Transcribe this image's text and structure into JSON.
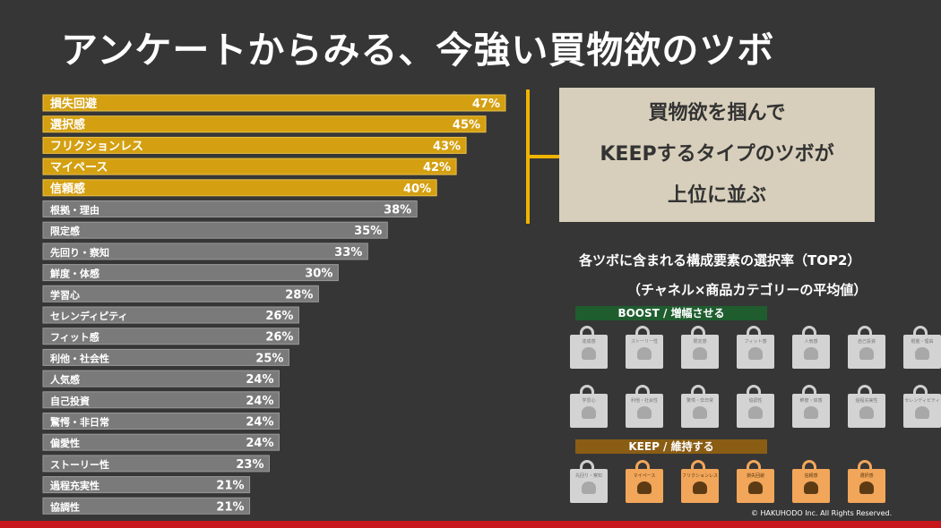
{
  "title": "アンケートからみる、今強い買物欲のツボ",
  "callout": {
    "line1": "買物欲を掴んで",
    "line2": "KEEPするタイプのツボが",
    "line3": "上位に並ぶ"
  },
  "subtitle_line1": "各ツボに含まれる構成要素の選択率（TOP2）",
  "subtitle_line2": "（チャネル×商品カテゴリーの平均値）",
  "boost_label": "BOOST / 増幅させる",
  "keep_label": "KEEP / 維持する",
  "boost_icons_row1": [
    {
      "icon": "trophy-person-icon",
      "label": "達成感"
    },
    {
      "icon": "story-people-icon",
      "label": "ストーリー性"
    },
    {
      "icon": "running-person-icon",
      "label": "限定感"
    },
    {
      "icon": "fit-person-icon",
      "label": "フィット感"
    },
    {
      "icon": "crowd-icon",
      "label": "人気感"
    },
    {
      "icon": "investment-graph-icon",
      "label": "自己投資"
    },
    {
      "icon": "person-laptop-icon",
      "label": "根拠・理由"
    }
  ],
  "boost_icons_row2": [
    {
      "icon": "study-person-icon",
      "label": "学習心"
    },
    {
      "icon": "globe-hands-icon",
      "label": "利他・社会性"
    },
    {
      "icon": "surprise-person-icon",
      "label": "驚愕・非日常"
    },
    {
      "icon": "group-people-icon",
      "label": "協調性"
    },
    {
      "icon": "standing-person-icon",
      "label": "鮮度・体感"
    },
    {
      "icon": "walking-forward-icon",
      "label": "過程充実性"
    },
    {
      "icon": "serendipity-icon",
      "label": "セレンディピティ"
    }
  ],
  "keep_icons": [
    {
      "icon": "shopping-person-icon",
      "label": "先回り・察知",
      "style": "light"
    },
    {
      "icon": "relaxed-person-icon",
      "label": "マイペース",
      "style": "orange"
    },
    {
      "icon": "frictionless-person-icon",
      "label": "フリクションレス",
      "style": "orange"
    },
    {
      "icon": "slipping-person-icon",
      "label": "損失回避",
      "style": "orange"
    },
    {
      "icon": "trusted-person-icon",
      "label": "信頼感",
      "style": "orange"
    },
    {
      "icon": "selection-person-icon",
      "label": "選択感",
      "style": "orange"
    }
  ],
  "copyright": "© HAKUHODO Inc. All Rights Reserved.",
  "colors": {
    "highlight_bar": "#d4a011",
    "normal_bar": "#7a7a7a",
    "background": "#363636",
    "callout_bg": "#d7cfbb",
    "boost_band": "#1f5d2f",
    "keep_band": "#8a5d14",
    "keep_icon": "#f2a65a",
    "footer_line": "#c8161d"
  },
  "chart_data": {
    "type": "bar",
    "orientation": "horizontal",
    "categories": [
      "損失回避",
      "選択感",
      "フリクションレス",
      "マイペース",
      "信頼感",
      "根拠・理由",
      "限定感",
      "先回り・察知",
      "鮮度・体感",
      "学習心",
      "セレンディピティ",
      "フィット感",
      "利他・社会性",
      "人気感",
      "自己投資",
      "驚愕・非日常",
      "偏愛性",
      "ストーリー性",
      "過程充実性",
      "協調性"
    ],
    "values": [
      47,
      45,
      43,
      42,
      40,
      38,
      35,
      33,
      30,
      28,
      26,
      26,
      25,
      24,
      24,
      24,
      24,
      23,
      21,
      21
    ],
    "value_labels": [
      "47%",
      "45%",
      "43%",
      "42%",
      "40%",
      "38%",
      "35%",
      "33%",
      "30%",
      "28%",
      "26%",
      "26%",
      "25%",
      "24%",
      "24%",
      "24%",
      "24%",
      "23%",
      "21%",
      "21%"
    ],
    "highlighted": [
      true,
      true,
      true,
      true,
      true,
      false,
      false,
      false,
      false,
      false,
      false,
      false,
      false,
      false,
      false,
      false,
      false,
      false,
      false,
      false
    ],
    "unit": "%",
    "xlim": [
      0,
      47
    ],
    "grid": false
  }
}
